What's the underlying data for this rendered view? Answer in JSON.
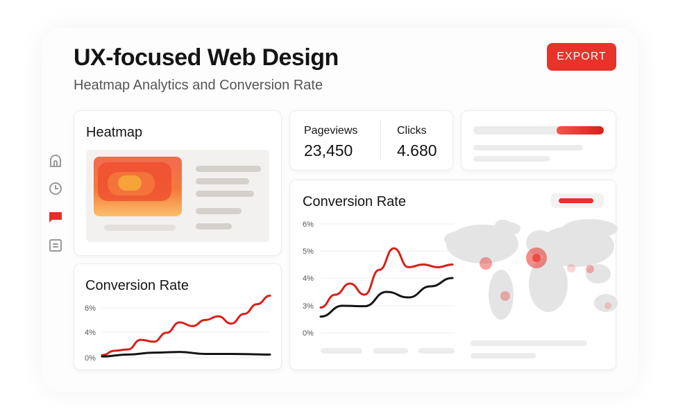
{
  "header": {
    "title": "UX-focused Web Design",
    "subtitle": "Heatmap Analytics and Conversion Rate",
    "export_label": "EXPORT"
  },
  "sidebar": {
    "items": [
      {
        "icon": "home-icon"
      },
      {
        "icon": "clock-icon"
      },
      {
        "icon": "comment-icon",
        "active": true
      },
      {
        "icon": "document-icon"
      }
    ]
  },
  "heatmap": {
    "title": "Heatmap"
  },
  "stats": [
    {
      "label": "Pageviews",
      "value": "23,450"
    },
    {
      "label": "Clicks",
      "value": "4.680"
    }
  ],
  "colors": {
    "accent": "#e8322a",
    "line_primary": "#d81f1a",
    "line_secondary": "#141414"
  },
  "progress": {
    "fraction": 0.6
  },
  "chart_data": [
    {
      "type": "line",
      "title": "Conversion Rate",
      "tick_labels": [
        "6%",
        "4%",
        "0%"
      ],
      "ticks": [
        6,
        4,
        0
      ],
      "series": [
        {
          "name": "red",
          "x": [
            0,
            1,
            2,
            3,
            4,
            5,
            6,
            7,
            8,
            9,
            10,
            11,
            12,
            13
          ],
          "values": [
            0.4,
            1.1,
            1.3,
            2.8,
            2.5,
            3.9,
            4.8,
            4.5,
            5.0,
            5.3,
            4.7,
            5.5,
            6.3,
            7.0
          ]
        },
        {
          "name": "black",
          "x": [
            0,
            2,
            4,
            6,
            8,
            10,
            13
          ],
          "values": [
            0.2,
            0.5,
            0.8,
            0.9,
            0.6,
            0.6,
            0.5
          ]
        }
      ]
    },
    {
      "type": "line",
      "title": "Conversion Rate",
      "tick_labels": [
        "6%",
        "5%",
        "4%",
        "3%",
        "0%"
      ],
      "ticks": [
        6,
        5,
        4,
        3,
        0
      ],
      "series": [
        {
          "name": "red",
          "x": [
            0,
            1,
            2,
            3,
            4,
            5,
            6,
            7,
            8,
            9
          ],
          "values": [
            2.8,
            3.4,
            3.8,
            3.4,
            4.3,
            5.1,
            4.4,
            4.5,
            4.4,
            4.5
          ]
        },
        {
          "name": "black",
          "x": [
            0,
            1,
            2,
            3,
            4,
            5,
            6
          ],
          "values": [
            1.8,
            3.0,
            2.95,
            3.5,
            3.3,
            3.7,
            4.0
          ]
        }
      ]
    }
  ]
}
